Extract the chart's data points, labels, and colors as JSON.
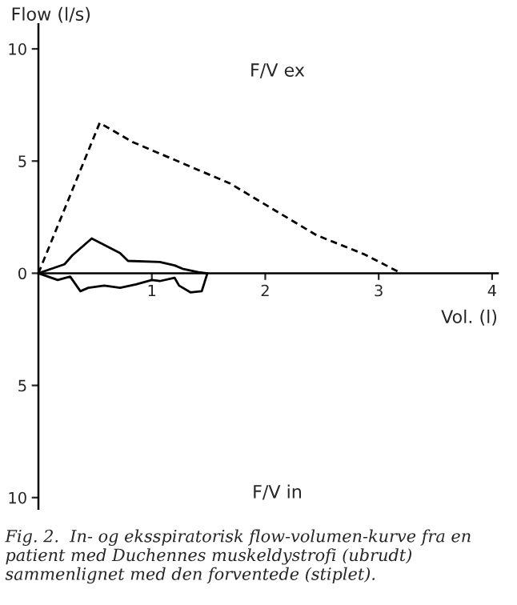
{
  "chart_data": {
    "type": "line",
    "xlabel": "Vol. (l)",
    "ylabel": "Flow (l/s)",
    "xlim": [
      0,
      4.05
    ],
    "xticks": [
      1,
      2,
      3,
      4
    ],
    "ylim": [
      -10.5,
      11.1
    ],
    "yticks": [
      {
        "value": -10,
        "label": "10"
      },
      {
        "value": -5,
        "label": "5"
      },
      0,
      5,
      10
    ],
    "grid": false,
    "legend": false,
    "marker": "none",
    "series": [
      {
        "color": "#000000",
        "line_style": "dashed",
        "x": [
          0,
          0.54,
          0.83,
          1.69,
          2.45,
          2.87,
          3.2
        ],
        "values": [
          0,
          6.7,
          5.85,
          4.0,
          1.7,
          0.85,
          0
        ]
      },
      {
        "color": "#000000",
        "line_style": "solid",
        "x": [
          0,
          0.23,
          0.3,
          0.47,
          0.72,
          0.79,
          1.07,
          1.2,
          1.27,
          1.41,
          1.48
        ],
        "values": [
          0,
          0.4,
          0.8,
          1.55,
          0.9,
          0.55,
          0.5,
          0.35,
          0.2,
          0.05,
          0
        ]
      },
      {
        "color": "#000000",
        "line_style": "solid",
        "x": [
          0,
          0.17,
          0.28,
          0.37,
          0.44,
          0.58,
          0.72,
          0.86,
          1.0,
          1.07,
          1.2,
          1.24,
          1.34,
          1.44,
          1.49
        ],
        "values": [
          0,
          -0.3,
          -0.15,
          -0.8,
          -0.65,
          -0.55,
          -0.65,
          -0.5,
          -0.3,
          -0.35,
          -0.2,
          -0.55,
          -0.85,
          -0.8,
          0
        ]
      }
    ],
    "annotations": [
      "F/V ex",
      "F/V in",
      "Fig. 2.  In- og eksspiratorisk flow-volumen-kurve fra en patient med Duchennes muskeldystrofi (ubrudt) sammenlignet med den forventede (stiplet)."
    ]
  }
}
